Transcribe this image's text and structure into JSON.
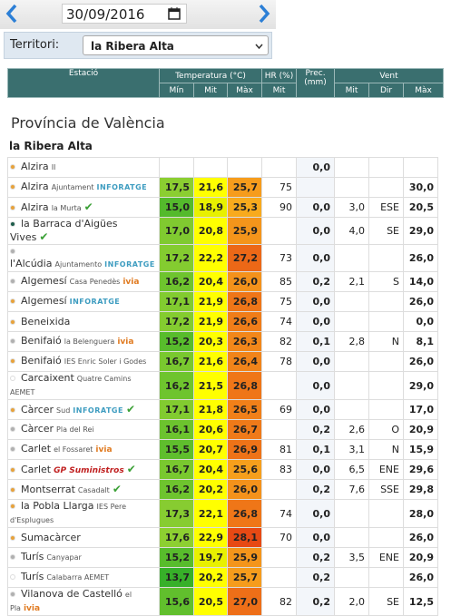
{
  "date_bar": {
    "date": "30/09/2016"
  },
  "filter": {
    "label": "Territori:",
    "selected": "la Ribera Alta"
  },
  "table_header": {
    "columns": [
      "Estació",
      "Temperatura (°C)",
      "HR (%)",
      "Prec. (mm)",
      "Vent"
    ],
    "subcolumns": [
      "Mín",
      "Mit",
      "Màx",
      "Mit",
      "Mit",
      "Dir",
      "Màx"
    ]
  },
  "province": "Província de València",
  "region": "la Ribera Alta",
  "rows": [
    {
      "name": "Alzira",
      "detail": "II",
      "dot": "#e8a23a",
      "cells": [
        null,
        null,
        null,
        null,
        "0,0",
        null,
        null,
        null
      ]
    },
    {
      "name": "Alzira",
      "detail": "Ajuntament",
      "brand": "INFORATGE",
      "dot": "#e8a23a",
      "cells": [
        "17,5",
        "21,6",
        "25,7",
        "75",
        null,
        null,
        null,
        "30,0"
      ]
    },
    {
      "name": "Alzira",
      "detail": "la Murta",
      "check": true,
      "dot": "#e8a23a",
      "cells": [
        "15,0",
        "18,9",
        "25,3",
        "90",
        "0,0",
        "3,0",
        "ESE",
        "20,5"
      ]
    },
    {
      "name": "la Barraca d'Aigües Vives",
      "check": true,
      "dot": "#1d5c4a",
      "cells": [
        "17,0",
        "20,8",
        "25,9",
        null,
        "0,0",
        "4,0",
        "SE",
        "29,0"
      ]
    },
    {
      "name": "l'Alcúdia",
      "detail": "Ajuntamento",
      "brand": "INFORATGE",
      "dot": "#b0b0b0",
      "cells": [
        "17,2",
        "22,2",
        "27,2",
        "73",
        "0,0",
        null,
        null,
        "26,0"
      ]
    },
    {
      "name": "Algemesí",
      "detail": "Casa Penedès",
      "brand": "ivia",
      "dot": "#b0b0b0",
      "cells": [
        "16,2",
        "20,4",
        "26,0",
        "85",
        "0,2",
        "2,1",
        "S",
        "14,0"
      ]
    },
    {
      "name": "Algemesí",
      "brand": "INFORATGE",
      "dot": "#e8a23a",
      "cells": [
        "17,1",
        "21,9",
        "26,8",
        "75",
        "0,0",
        null,
        null,
        "26,0"
      ]
    },
    {
      "name": "Beneixida",
      "dot": "#e8a23a",
      "cells": [
        "17,2",
        "21,9",
        "26,6",
        "74",
        "0,0",
        null,
        null,
        "0,0"
      ]
    },
    {
      "name": "Benifaió",
      "detail": "la Belenguera",
      "brand": "ivia",
      "dot": "#b0b0b0",
      "cells": [
        "15,2",
        "20,3",
        "26,3",
        "82",
        "0,1",
        "2,8",
        "N",
        "8,1"
      ]
    },
    {
      "name": "Benifaió",
      "detail": "IES Enric Soler i Godes",
      "dot": "#e8a23a",
      "cells": [
        "16,7",
        "21,6",
        "26,4",
        "78",
        "0,0",
        null,
        null,
        "26,0"
      ]
    },
    {
      "name": "Carcaixent",
      "detail": "Quatre Camins AEMET",
      "dot": "#ffffff",
      "cells": [
        "16,2",
        "21,5",
        "26,8",
        null,
        "0,0",
        null,
        null,
        "29,0"
      ]
    },
    {
      "name": "Càrcer",
      "detail": "Sud",
      "brand": "INFORATGE",
      "check": true,
      "dot": "#e8a23a",
      "cells": [
        "17,1",
        "21,8",
        "26,5",
        "69",
        "0,0",
        null,
        null,
        "17,0"
      ]
    },
    {
      "name": "Càrcer",
      "detail": "Pla del Rei",
      "dot": "#b0b0b0",
      "cells": [
        "16,1",
        "20,6",
        "26,7",
        null,
        "0,2",
        "2,6",
        "O",
        "20,9"
      ]
    },
    {
      "name": "Carlet",
      "detail": "el Fossaret",
      "brand": "ivia",
      "dot": "#b0b0b0",
      "cells": [
        "15,5",
        "20,7",
        "26,9",
        "81",
        "0,1",
        "3,1",
        "N",
        "15,9"
      ]
    },
    {
      "name": "Carlet",
      "brand": "GP Suministros",
      "check": true,
      "dot": "#e8a23a",
      "cells": [
        "16,7",
        "20,4",
        "25,6",
        "83",
        "0,0",
        "6,5",
        "ENE",
        "29,6"
      ]
    },
    {
      "name": "Montserrat",
      "detail": "Casadalt",
      "check": true,
      "dot": "#e8a23a",
      "cells": [
        "16,2",
        "20,2",
        "26,0",
        null,
        "0,2",
        "7,6",
        "SSE",
        "29,8"
      ]
    },
    {
      "name": "la Pobla Llarga",
      "detail": "IES Pere d'Esplugues",
      "dot": "#e8a23a",
      "cells": [
        "17,3",
        "22,1",
        "26,8",
        "74",
        "0,0",
        null,
        null,
        "28,0"
      ]
    },
    {
      "name": "Sumacàrcer",
      "dot": "#e8a23a",
      "cells": [
        "17,6",
        "22,9",
        "28,1",
        "70",
        "0,0",
        null,
        null,
        "26,0"
      ]
    },
    {
      "name": "Turís",
      "detail": "Canyapar",
      "dot": "#b0b0b0",
      "cells": [
        "15,2",
        "19,7",
        "25,9",
        null,
        "0,2",
        "3,5",
        "ENE",
        "20,9"
      ]
    },
    {
      "name": "Turís",
      "detail": "Calabarra AEMET",
      "dot": "#ffffff",
      "cells": [
        "13,7",
        "20,2",
        "25,7",
        null,
        "0,2",
        null,
        null,
        "26,0"
      ]
    },
    {
      "name": "Vilanova de Castelló",
      "detail": "el Pla",
      "brand": "ivia",
      "dot": "#b0b0b0",
      "cells": [
        "15,6",
        "20,5",
        "27,0",
        "82",
        "0,2",
        "2,0",
        "SE",
        "12,5"
      ]
    }
  ]
}
